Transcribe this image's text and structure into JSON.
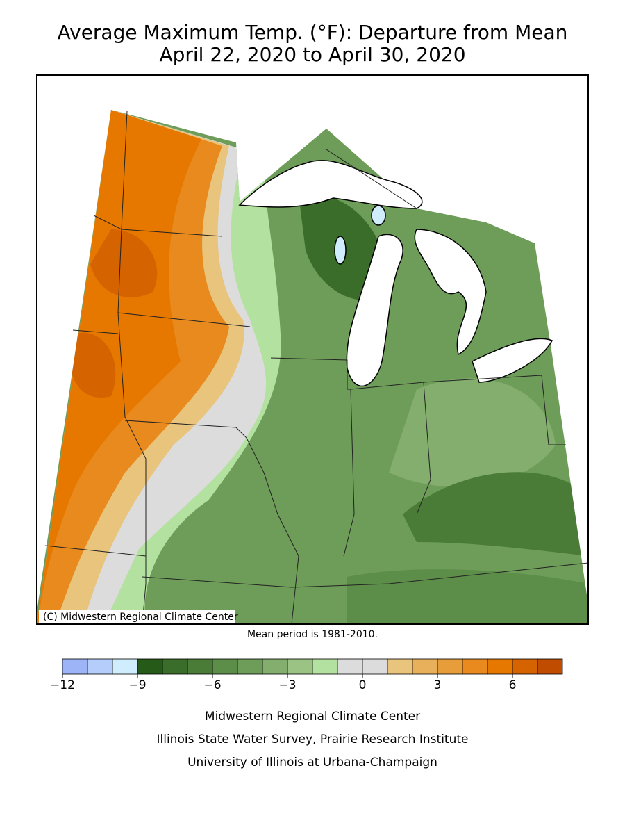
{
  "header": {
    "title": "Average Maximum Temp. (°F): Departure from Mean",
    "subtitle": "April 22, 2020 to April 30, 2020"
  },
  "map": {
    "copyright": "(C) Midwestern Regional Climate Center"
  },
  "note": "Mean period is 1981-2010.",
  "legend": {
    "lim": [
      -12,
      8
    ],
    "colors": [
      "#9db5f7",
      "#b4cdfb",
      "#cfedfd",
      "#265a18",
      "#396d29",
      "#4a7c37",
      "#5d8e49",
      "#6e9c59",
      "#83ae6e",
      "#9ac384",
      "#b3e19f",
      "#dcdcdc",
      "#dcdcdc",
      "#e8c47c",
      "#e8b05a",
      "#e69d3a",
      "#e88a1e",
      "#e67800",
      "#d46300",
      "#c04c00"
    ],
    "ticks": [
      {
        "value": -12,
        "label": "−12"
      },
      {
        "value": -9,
        "label": "−9"
      },
      {
        "value": -6,
        "label": "−6"
      },
      {
        "value": -3,
        "label": "−3"
      },
      0,
      3,
      6
    ]
  },
  "credits": [
    "Midwestern Regional Climate Center",
    "Illinois State Water Survey, Prairie Research Institute",
    "University of Illinois at Urbana-Champaign"
  ]
}
